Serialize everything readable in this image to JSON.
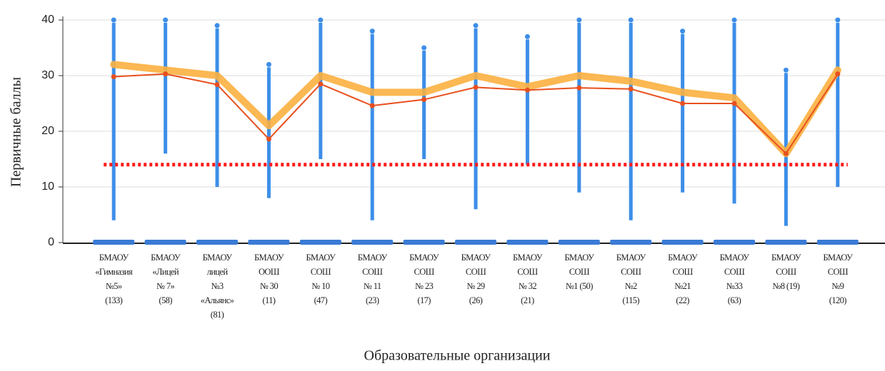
{
  "chart_data": {
    "type": "line",
    "ylabel": "Первичные баллы",
    "xlabel": "Образовательные организации",
    "categories": [
      [
        "БМАОУ",
        "«Гимназия",
        "№5»",
        "(133)"
      ],
      [
        "БМАОУ",
        "«Лицей",
        "№ 7»",
        "(58)"
      ],
      [
        "БМАОУ",
        "лицей",
        "№3",
        "«Альянс»",
        "(81)"
      ],
      [
        "БМАОУ",
        "ООШ",
        "№ 30",
        "(11)"
      ],
      [
        "БМАОУ",
        "СОШ",
        "№ 10",
        "(47)"
      ],
      [
        "БМАОУ",
        "СОШ",
        "№ 11",
        "(23)"
      ],
      [
        "БМАОУ",
        "СОШ",
        "№ 23",
        "(17)"
      ],
      [
        "БМАОУ",
        "СОШ",
        "№ 29",
        "(26)"
      ],
      [
        "БМАОУ",
        "СОШ",
        "№ 32",
        "(21)"
      ],
      [
        "БМАОУ",
        "СОШ",
        "№1 (50)"
      ],
      [
        "БМАОУ",
        "СОШ",
        "№2",
        "(115)"
      ],
      [
        "БМАОУ",
        "СОШ",
        "№21",
        "(22)"
      ],
      [
        "БМАОУ",
        "СОШ",
        "№33",
        "(63)"
      ],
      [
        "БМАОУ",
        "СОШ",
        "№8 (19)"
      ],
      [
        "БМАОУ",
        "СОШ",
        "№9",
        "(120)"
      ]
    ],
    "ranges": {
      "color": "#3d8ee8",
      "low": [
        4,
        16,
        10,
        8,
        15,
        4,
        15,
        6,
        14,
        9,
        4,
        9,
        7,
        3,
        10
      ],
      "high": [
        40,
        40,
        39,
        32,
        40,
        38,
        35,
        39,
        37,
        40,
        40,
        38,
        40,
        31,
        40
      ]
    },
    "baseline": {
      "color": "#3a7bd5",
      "values": [
        0,
        0,
        0,
        0,
        0,
        0,
        0,
        0,
        0,
        0,
        0,
        0,
        0,
        0,
        0
      ]
    },
    "median": {
      "color": "#fbb040",
      "values": [
        32,
        31,
        30,
        21,
        30,
        27,
        27,
        30,
        28,
        30,
        29,
        27,
        26,
        16,
        31
      ]
    },
    "mean": {
      "color": "#e8501e",
      "values": [
        29.8,
        30.3,
        28.4,
        18.6,
        28.5,
        24.6,
        25.7,
        27.9,
        27.4,
        27.8,
        27.6,
        25,
        25,
        16,
        30.3
      ]
    },
    "threshold": {
      "color": "#ff1a1a",
      "value": 14
    },
    "ylim": [
      0,
      40
    ],
    "yticks": [
      0,
      10,
      20,
      30,
      40
    ],
    "grid": true
  }
}
